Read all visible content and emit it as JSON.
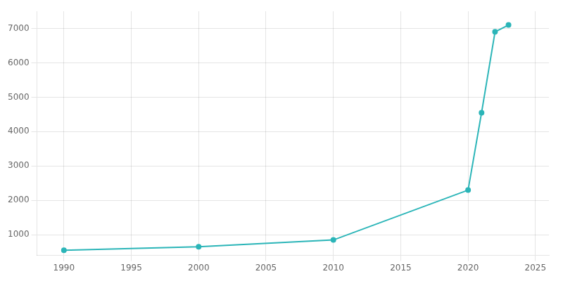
{
  "chart_data": {
    "type": "line",
    "x": [
      1990,
      2000,
      2010,
      2020,
      2021,
      2022,
      2023
    ],
    "values": [
      550,
      650,
      850,
      2300,
      4550,
      6900,
      7100
    ],
    "color": "#2bb5b8",
    "marker": "circle",
    "xlim": [
      1988,
      2026
    ],
    "ylim": [
      400,
      7500
    ],
    "xticks": [
      1990,
      1995,
      2000,
      2005,
      2010,
      2015,
      2020,
      2025
    ],
    "yticks": [
      1000,
      2000,
      3000,
      4000,
      5000,
      6000,
      7000
    ],
    "grid": true
  }
}
